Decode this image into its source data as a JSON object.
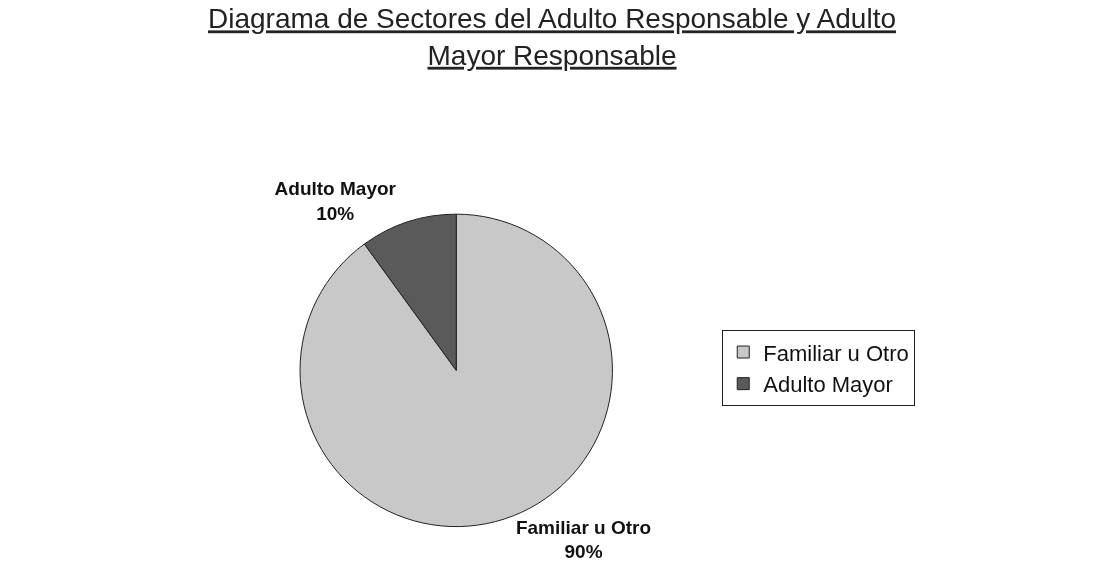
{
  "chart_data": {
    "type": "pie",
    "title": "Diagrama de Sectores del Adulto Responsable y Adulto Mayor Responsable",
    "categories": [
      "Familiar u Otro",
      "Adulto Mayor"
    ],
    "values": [
      90,
      10
    ],
    "value_labels": [
      "90%",
      "10%"
    ],
    "colors": [
      "#c8c8c8",
      "#5a5a5a"
    ],
    "legend": "right"
  }
}
